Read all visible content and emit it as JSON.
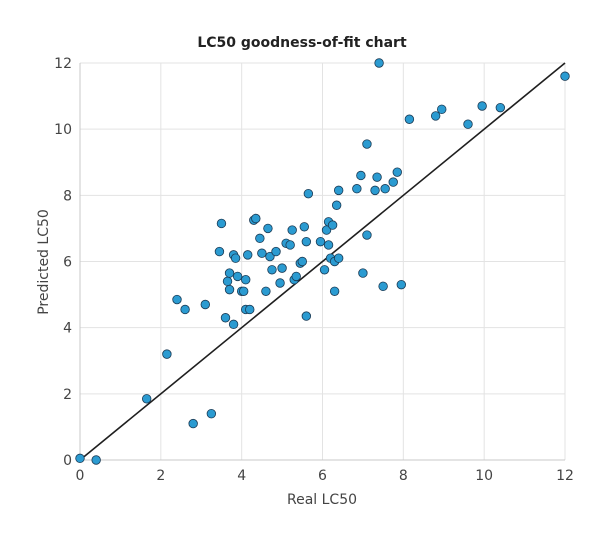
{
  "chart_data": {
    "type": "scatter",
    "title": "LC50 goodness-of-fit chart",
    "xlabel": "Real LC50",
    "ylabel": "Predicted LC50",
    "xlim": [
      0,
      12
    ],
    "ylim": [
      0,
      12
    ],
    "xticks": [
      0,
      2,
      4,
      6,
      8,
      10,
      12
    ],
    "yticks": [
      0,
      2,
      4,
      6,
      8,
      10,
      12
    ],
    "grid": true,
    "legend": "none",
    "colors": {
      "marker_fill": "#2b9bd1",
      "marker_edge": "#1b3b55",
      "fit_line": "#1f1f1f",
      "grid": "#e3e3e3"
    },
    "reference_line": {
      "type": "identity",
      "points": [
        [
          0,
          0
        ],
        [
          12,
          12
        ]
      ]
    },
    "series": [
      {
        "points": [
          [
            0.0,
            0.05
          ],
          [
            0.4,
            0.0
          ],
          [
            1.65,
            1.85
          ],
          [
            2.15,
            3.2
          ],
          [
            2.4,
            4.85
          ],
          [
            2.6,
            4.55
          ],
          [
            2.8,
            1.1
          ],
          [
            3.1,
            4.7
          ],
          [
            3.25,
            1.4
          ],
          [
            3.45,
            6.3
          ],
          [
            3.5,
            7.15
          ],
          [
            3.6,
            4.3
          ],
          [
            3.65,
            5.4
          ],
          [
            3.7,
            5.65
          ],
          [
            3.7,
            5.15
          ],
          [
            3.8,
            4.1
          ],
          [
            3.8,
            6.2
          ],
          [
            3.85,
            6.1
          ],
          [
            3.9,
            5.55
          ],
          [
            4.0,
            5.1
          ],
          [
            4.05,
            5.1
          ],
          [
            4.1,
            5.45
          ],
          [
            4.1,
            4.55
          ],
          [
            4.15,
            6.2
          ],
          [
            4.2,
            4.55
          ],
          [
            4.3,
            7.25
          ],
          [
            4.35,
            7.3
          ],
          [
            4.45,
            6.7
          ],
          [
            4.5,
            6.25
          ],
          [
            4.6,
            5.1
          ],
          [
            4.65,
            7.0
          ],
          [
            4.7,
            6.15
          ],
          [
            4.75,
            5.75
          ],
          [
            4.85,
            6.3
          ],
          [
            4.95,
            5.35
          ],
          [
            5.0,
            5.8
          ],
          [
            5.1,
            6.55
          ],
          [
            5.2,
            6.5
          ],
          [
            5.25,
            6.95
          ],
          [
            5.3,
            5.45
          ],
          [
            5.35,
            5.55
          ],
          [
            5.45,
            5.95
          ],
          [
            5.5,
            6.0
          ],
          [
            5.55,
            7.05
          ],
          [
            5.6,
            6.6
          ],
          [
            5.6,
            4.35
          ],
          [
            5.65,
            8.05
          ],
          [
            5.95,
            6.6
          ],
          [
            6.05,
            5.75
          ],
          [
            6.1,
            6.95
          ],
          [
            6.15,
            7.2
          ],
          [
            6.15,
            6.5
          ],
          [
            6.2,
            6.1
          ],
          [
            6.25,
            7.1
          ],
          [
            6.3,
            5.1
          ],
          [
            6.3,
            6.0
          ],
          [
            6.35,
            7.7
          ],
          [
            6.4,
            6.1
          ],
          [
            6.4,
            8.15
          ],
          [
            6.85,
            8.2
          ],
          [
            6.95,
            8.6
          ],
          [
            7.0,
            5.65
          ],
          [
            7.1,
            6.8
          ],
          [
            7.1,
            9.55
          ],
          [
            7.3,
            8.15
          ],
          [
            7.35,
            8.55
          ],
          [
            7.4,
            12.0
          ],
          [
            7.5,
            5.25
          ],
          [
            7.55,
            8.2
          ],
          [
            7.75,
            8.4
          ],
          [
            7.85,
            8.7
          ],
          [
            7.95,
            5.3
          ],
          [
            8.15,
            10.3
          ],
          [
            8.8,
            10.4
          ],
          [
            8.95,
            10.6
          ],
          [
            9.6,
            10.15
          ],
          [
            9.95,
            10.7
          ],
          [
            10.4,
            10.65
          ],
          [
            12.0,
            11.6
          ]
        ]
      }
    ]
  }
}
